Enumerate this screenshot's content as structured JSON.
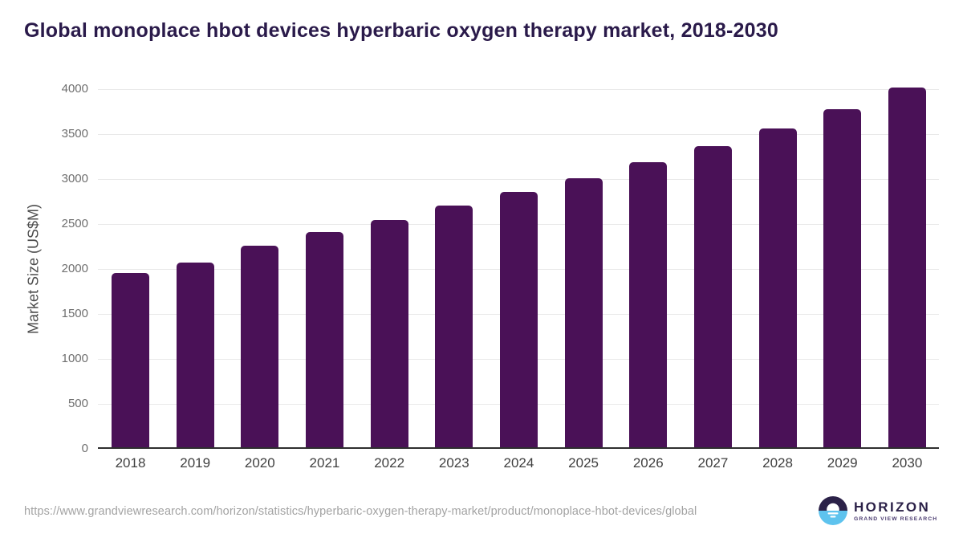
{
  "title": "Global monoplace hbot devices hyperbaric oxygen therapy market, 2018-2030",
  "chart_data": {
    "type": "bar",
    "title": "Global monoplace hbot devices hyperbaric oxygen therapy market, 2018-2030",
    "categories": [
      "2018",
      "2019",
      "2020",
      "2021",
      "2022",
      "2023",
      "2024",
      "2025",
      "2026",
      "2027",
      "2028",
      "2029",
      "2030"
    ],
    "values": [
      1935,
      2055,
      2240,
      2390,
      2530,
      2685,
      2835,
      2990,
      3170,
      3350,
      3545,
      3760,
      4000
    ],
    "xlabel": "",
    "ylabel": "Market Size (US$M)",
    "ylim": [
      0,
      4000
    ],
    "yticks": [
      0,
      500,
      1000,
      1500,
      2000,
      2500,
      3000,
      3500,
      4000
    ],
    "grid": "horizontal",
    "legend": "none",
    "bar_color": "#4a1157"
  },
  "footer": {
    "source_url": "https://www.grandviewresearch.com/horizon/statistics/hyperbaric-oxygen-therapy-market/product/monoplace-hbot-devices/global",
    "logo": {
      "title": "HORIZON",
      "subtitle": "GRAND VIEW RESEARCH",
      "icon": "horizon-sun-over-water-icon",
      "purple": "#2b2148",
      "blue": "#5ec3ee"
    }
  },
  "colors": {
    "title": "#2a1a4a",
    "bar": "#4a1157",
    "gridline": "#e9e9e9",
    "axis_line": "#2f2f2f",
    "ytick_text": "#6f6f6f",
    "xtick_text": "#3f3f3f",
    "url_text": "#a3a3a3"
  }
}
